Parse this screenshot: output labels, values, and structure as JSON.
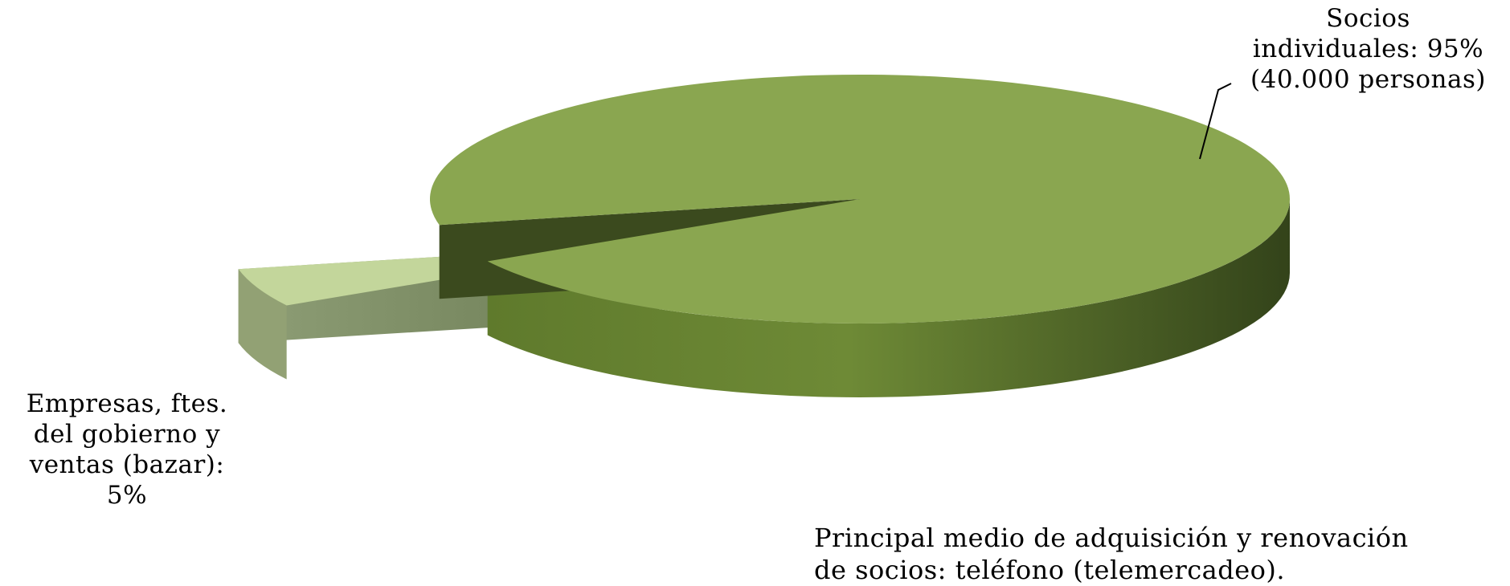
{
  "chart_data": {
    "type": "pie",
    "style": "3d-exploded",
    "slices": [
      {
        "label_lines": [
          "Socios",
          "individuales: 95%",
          "(40.000 personas)"
        ],
        "value": 95,
        "color": "#8aa650"
      },
      {
        "label_lines": [
          "Empresas, ftes.",
          "del gobierno y",
          "ventas (bazar):",
          "5%"
        ],
        "value": 5,
        "color": "#c3d69b"
      }
    ],
    "annotation_lines": [
      "Principal medio de adquisición y renovación",
      "de socios: teléfono (telemercadeo)."
    ]
  }
}
